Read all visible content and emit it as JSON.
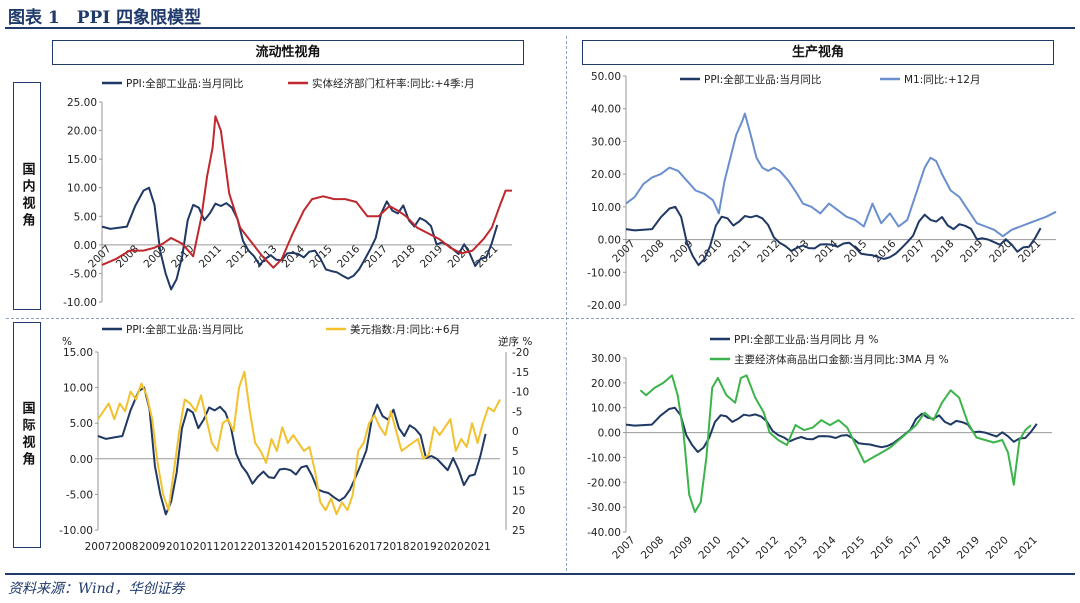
{
  "figure_title": "图表 1　PPI 四象限模型",
  "source": "资料来源：Wind，华创证券",
  "section_labels": {
    "liquidity": "流动性视角",
    "production": "生产视角",
    "domestic": "国内视角",
    "international": "国际视角"
  },
  "colors": {
    "navy": "#1f3864",
    "red": "#c0282d",
    "blue": "#6a8fcf",
    "yellow": "#f2c12e",
    "green": "#3cb44b",
    "frame": "#1f3a6b"
  },
  "chart_data": [
    {
      "id": "tl",
      "type": "line",
      "title": "流动性视角",
      "ylim": [
        -10,
        25
      ],
      "yticks": [
        -10,
        -5,
        0,
        5,
        10,
        15,
        20,
        25
      ],
      "ytick_labels": [
        "-10.00",
        "-5.00",
        "0.00",
        "5.00",
        "10.00",
        "15.00",
        "20.00",
        "25.00"
      ],
      "xlim": [
        2007,
        2021.83
      ],
      "xtick_labels": [
        "2007",
        "2008",
        "2009",
        "2010",
        "2011",
        "2012",
        "2013",
        "2014",
        "2015",
        "2016",
        "2017",
        "2018",
        "2019",
        "2020",
        "2021"
      ],
      "series": [
        {
          "name": "PPI:全部工业品:当月同比",
          "color": "navy",
          "x": [
            2007.0,
            2007.3,
            2007.6,
            2007.9,
            2008.2,
            2008.5,
            2008.7,
            2008.9,
            2009.1,
            2009.3,
            2009.5,
            2009.7,
            2009.9,
            2010.1,
            2010.3,
            2010.5,
            2010.7,
            2010.9,
            2011.1,
            2011.3,
            2011.5,
            2011.7,
            2011.9,
            2012.1,
            2012.3,
            2012.5,
            2012.7,
            2012.9,
            2013.1,
            2013.3,
            2013.5,
            2013.7,
            2013.9,
            2014.1,
            2014.3,
            2014.5,
            2014.7,
            2014.9,
            2015.1,
            2015.3,
            2015.5,
            2015.7,
            2015.9,
            2016.1,
            2016.3,
            2016.5,
            2016.7,
            2016.9,
            2017.1,
            2017.3,
            2017.5,
            2017.7,
            2017.9,
            2018.1,
            2018.3,
            2018.5,
            2018.7,
            2018.9,
            2019.1,
            2019.3,
            2019.5,
            2019.7,
            2019.9,
            2020.1,
            2020.3,
            2020.5,
            2020.7,
            2020.9,
            2021.1,
            2021.3
          ],
          "y": [
            3.2,
            2.8,
            3,
            3.2,
            6.8,
            9.5,
            10,
            7,
            -1,
            -5,
            -7.8,
            -6,
            -2,
            4.3,
            7,
            6.5,
            4.3,
            5.5,
            7.2,
            6.8,
            7.3,
            6.5,
            4.5,
            0.7,
            -1,
            -2,
            -3.5,
            -2.5,
            -1.8,
            -2.6,
            -2.7,
            -1.5,
            -1.4,
            -1.6,
            -2.2,
            -1.2,
            -1,
            -2.4,
            -4.3,
            -4.6,
            -4.8,
            -5.4,
            -5.9,
            -5.4,
            -4.3,
            -2.6,
            -0.8,
            1.2,
            5.5,
            7.6,
            6,
            5.5,
            6.9,
            4.3,
            3.2,
            4.7,
            4.2,
            3.3,
            0.1,
            0.4,
            0,
            -0.8,
            -1.6,
            0.1,
            -1.5,
            -3.7,
            -2.4,
            -2.2,
            0.3,
            3.5
          ]
        },
        {
          "name": "实体经济部门杠杆率:同比:+4季:月",
          "color": "red",
          "x": [
            2007.0,
            2007.5,
            2008.0,
            2008.5,
            2008.9,
            2009.2,
            2009.5,
            2009.9,
            2010.3,
            2010.6,
            2010.8,
            2011.0,
            2011.1,
            2011.3,
            2011.6,
            2012.0,
            2012.4,
            2012.8,
            2013.2,
            2013.5,
            2013.9,
            2014.3,
            2014.6,
            2015.0,
            2015.4,
            2015.8,
            2016.2,
            2016.6,
            2017.0,
            2017.4,
            2017.7,
            2018.0,
            2018.4,
            2018.8,
            2019.2,
            2019.6,
            2020.0,
            2020.4,
            2020.8,
            2021.1,
            2021.4,
            2021.6,
            2021.83
          ],
          "y": [
            -3.5,
            -2.5,
            -1,
            -1,
            -0.5,
            0.2,
            1.2,
            0.2,
            -2,
            5,
            12,
            17,
            22.5,
            20,
            9,
            3,
            0.5,
            -2,
            -4,
            -2.5,
            2,
            6,
            8,
            8.5,
            8,
            8,
            7.5,
            5,
            5,
            6.8,
            6,
            5,
            3,
            2,
            1,
            -0.5,
            -1.5,
            -1,
            1,
            3,
            7,
            9.5,
            9.5
          ]
        }
      ]
    },
    {
      "id": "tr",
      "type": "line",
      "title": "生产视角",
      "ylim": [
        -20,
        50
      ],
      "yticks": [
        -20,
        -10,
        0,
        10,
        20,
        30,
        40,
        50
      ],
      "ytick_labels": [
        "-20.00",
        "-10.00",
        "0.00",
        "10.00",
        "20.00",
        "30.00",
        "40.00",
        "50.00"
      ],
      "xlim": [
        2007,
        2021.83
      ],
      "xtick_labels": [
        "2007",
        "2008",
        "2009",
        "2010",
        "2011",
        "2012",
        "2013",
        "2014",
        "2015",
        "2016",
        "2017",
        "2018",
        "2019",
        "2020",
        "2021"
      ],
      "series": [
        {
          "name": "PPI:全部工业品:当月同比",
          "color": "navy",
          "ref": "tl.0"
        },
        {
          "name": "M1:同比:+12月",
          "color": "blue",
          "x": [
            2007.0,
            2007.3,
            2007.6,
            2007.9,
            2008.2,
            2008.5,
            2008.8,
            2009.1,
            2009.4,
            2009.7,
            2010.0,
            2010.2,
            2010.4,
            2010.6,
            2010.8,
            2011.0,
            2011.1,
            2011.3,
            2011.5,
            2011.7,
            2011.9,
            2012.1,
            2012.3,
            2012.6,
            2012.9,
            2013.1,
            2013.4,
            2013.7,
            2014.0,
            2014.3,
            2014.6,
            2014.9,
            2015.2,
            2015.5,
            2015.8,
            2016.1,
            2016.4,
            2016.7,
            2017.0,
            2017.3,
            2017.5,
            2017.7,
            2017.9,
            2018.2,
            2018.5,
            2018.8,
            2019.1,
            2019.4,
            2019.7,
            2020.0,
            2020.3,
            2020.6,
            2020.9,
            2021.2,
            2021.5,
            2021.83
          ],
          "y": [
            11,
            13,
            17,
            19,
            20,
            22,
            21,
            18,
            15,
            14,
            12,
            8,
            18,
            25,
            32,
            36,
            38.5,
            32,
            25,
            22,
            21,
            22,
            21,
            18,
            14,
            11,
            10,
            8,
            11,
            9,
            7,
            6,
            4,
            11,
            5,
            8,
            4,
            6,
            14,
            22,
            25,
            24,
            20,
            15,
            13,
            9,
            5,
            4,
            3,
            1,
            3,
            4,
            5,
            6,
            7,
            8.5
          ]
        }
      ]
    },
    {
      "id": "bl",
      "type": "line",
      "title": "国际视角",
      "ylim": [
        -10,
        15
      ],
      "yticks": [
        -10,
        -5,
        0,
        5,
        10,
        15
      ],
      "ytick_labels": [
        "-10.00",
        "-5.00",
        "0.00",
        "5.00",
        "10.00",
        "15.00"
      ],
      "yunit_left": "%",
      "y2lim": [
        25,
        -20
      ],
      "y2ticks": [
        25,
        20,
        15,
        10,
        5,
        0,
        -5,
        -10,
        -15,
        -20
      ],
      "y2tick_labels": [
        "25",
        "20",
        "15",
        "10",
        "5",
        "0",
        "-5",
        "-10",
        "-15",
        "-20"
      ],
      "y2label": "逆序 %",
      "xlim": [
        2007,
        2021.83
      ],
      "xtick_labels": [
        "2007",
        "2008",
        "2009",
        "2010",
        "2011",
        "2012",
        "2013",
        "2014",
        "2015",
        "2016",
        "2017",
        "2018",
        "2019",
        "2020",
        "2021"
      ],
      "series": [
        {
          "name": "PPI:全部工业品:当月同比",
          "color": "navy",
          "ref": "tl.0"
        },
        {
          "name": "美元指数:月:同比:+6月",
          "color": "yellow",
          "x": [
            2007.0,
            2007.2,
            2007.4,
            2007.6,
            2007.8,
            2008.0,
            2008.2,
            2008.4,
            2008.6,
            2008.8,
            2009.0,
            2009.2,
            2009.4,
            2009.6,
            2009.8,
            2010.0,
            2010.2,
            2010.4,
            2010.6,
            2010.8,
            2011.0,
            2011.2,
            2011.4,
            2011.6,
            2011.8,
            2012.0,
            2012.2,
            2012.4,
            2012.6,
            2012.8,
            2013.0,
            2013.2,
            2013.4,
            2013.6,
            2013.8,
            2014.0,
            2014.2,
            2014.4,
            2014.6,
            2014.8,
            2015.0,
            2015.2,
            2015.4,
            2015.6,
            2015.8,
            2016.0,
            2016.2,
            2016.4,
            2016.6,
            2016.8,
            2017.0,
            2017.2,
            2017.4,
            2017.6,
            2017.8,
            2018.0,
            2018.2,
            2018.4,
            2018.6,
            2018.8,
            2019.0,
            2019.2,
            2019.4,
            2019.6,
            2019.8,
            2020.0,
            2020.2,
            2020.4,
            2020.6,
            2020.8,
            2021.0,
            2021.2,
            2021.4,
            2021.6,
            2021.83
          ],
          "y": [
            -3,
            -5,
            -7,
            -3,
            -7,
            -5,
            -10,
            -8,
            -12,
            -9,
            -3,
            8,
            16,
            20,
            10,
            0,
            -8,
            -7,
            -5,
            -9,
            -3,
            3,
            5,
            -2,
            -3,
            0,
            -11,
            -15,
            -5,
            3,
            5,
            8,
            2,
            5,
            -1,
            3,
            1,
            3,
            5,
            4,
            10,
            18,
            20,
            17,
            21,
            18,
            20,
            16,
            5,
            3,
            -2,
            -4,
            -1,
            1,
            -5,
            0,
            5,
            4,
            3,
            2,
            7,
            6,
            -1,
            1,
            -1,
            -3,
            5,
            2,
            4,
            -2,
            3,
            -2,
            -6,
            -5,
            -8
          ]
        }
      ]
    },
    {
      "id": "br",
      "type": "line",
      "title": "",
      "ylim": [
        -40,
        30
      ],
      "yticks": [
        -40,
        -30,
        -20,
        -10,
        0,
        10,
        20,
        30
      ],
      "ytick_labels": [
        "-40.00",
        "-30.00",
        "-20.00",
        "-10.00",
        "0.00",
        "10.00",
        "20.00",
        "30.00"
      ],
      "xlim": [
        2007,
        2021.83
      ],
      "xtick_labels": [
        "2007",
        "2008",
        "2009",
        "2010",
        "2011",
        "2012",
        "2013",
        "2014",
        "2015",
        "2016",
        "2017",
        "2018",
        "2019",
        "2020",
        "2021"
      ],
      "series": [
        {
          "name": "PPI:全部工业品:当月同比 月 %",
          "color": "navy",
          "ref": "tl.0"
        },
        {
          "name": "主要经济体商品出口金额:当月同比:3MA 月 %",
          "color": "green",
          "x": [
            2007.5,
            2007.7,
            2008.0,
            2008.3,
            2008.6,
            2008.8,
            2009.0,
            2009.2,
            2009.4,
            2009.6,
            2009.8,
            2010.0,
            2010.2,
            2010.5,
            2010.8,
            2011.0,
            2011.2,
            2011.5,
            2011.8,
            2012.0,
            2012.3,
            2012.6,
            2012.9,
            2013.2,
            2013.5,
            2013.8,
            2014.1,
            2014.4,
            2014.7,
            2015.0,
            2015.3,
            2015.6,
            2015.9,
            2016.2,
            2016.5,
            2016.8,
            2017.1,
            2017.4,
            2017.7,
            2018.0,
            2018.3,
            2018.6,
            2018.9,
            2019.2,
            2019.5,
            2019.8,
            2020.1,
            2020.3,
            2020.5,
            2020.7,
            2020.9,
            2021.1
          ],
          "y": [
            17,
            15,
            18,
            20,
            23,
            15,
            0,
            -25,
            -32,
            -28,
            -10,
            18,
            22,
            15,
            12,
            22,
            23,
            14,
            8,
            0,
            -3,
            -5,
            3,
            1,
            2,
            5,
            3,
            5,
            2,
            -5,
            -12,
            -10,
            -8,
            -6,
            -3,
            0,
            3,
            8,
            5,
            12,
            17,
            14,
            4,
            -2,
            -3,
            -4,
            -3,
            -8,
            -21,
            -3,
            1,
            3
          ]
        }
      ]
    }
  ],
  "legends": {
    "tl": [
      "PPI:全部工业品:当月同比",
      "实体经济部门杠杆率:同比:+4季:月"
    ],
    "tr": [
      "PPI:全部工业品:当月同比",
      "M1:同比:+12月"
    ],
    "bl": [
      "PPI:全部工业品:当月同比",
      "美元指数:月:同比:+6月"
    ],
    "br": [
      "PPI:全部工业品:当月同比 月 %",
      "主要经济体商品出口金额:当月同比:3MA 月 %"
    ]
  }
}
